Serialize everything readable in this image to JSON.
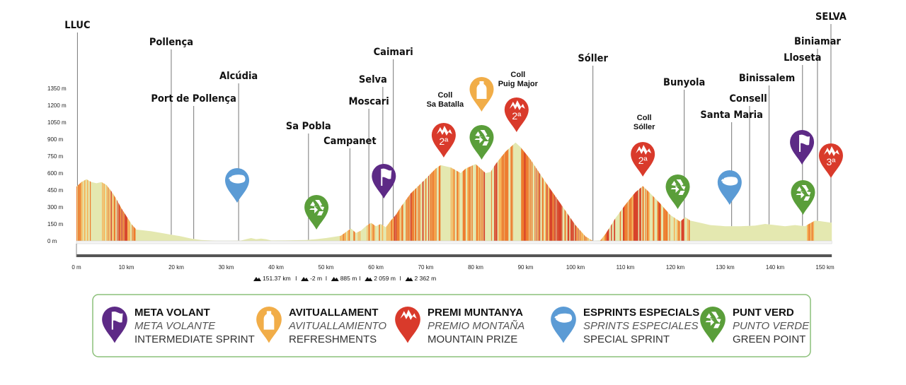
{
  "chart_data": {
    "type": "area",
    "title": "",
    "xlabel": "",
    "ylabel": "",
    "x_unit": "km",
    "y_unit": "m",
    "xlim": [
      0,
      151.37
    ],
    "ylim": [
      0,
      1400
    ],
    "x_ticks": [
      {
        "value": 0,
        "label": "0 m"
      },
      {
        "value": 10,
        "label": "10 km"
      },
      {
        "value": 20,
        "label": "20 km"
      },
      {
        "value": 30,
        "label": "30 km"
      },
      {
        "value": 40,
        "label": "40 km"
      },
      {
        "value": 50,
        "label": "50 km"
      },
      {
        "value": 60,
        "label": "60 km"
      },
      {
        "value": 70,
        "label": "70 km"
      },
      {
        "value": 80,
        "label": "80 km"
      },
      {
        "value": 90,
        "label": "90 km"
      },
      {
        "value": 100,
        "label": "100 km"
      },
      {
        "value": 110,
        "label": "110 km"
      },
      {
        "value": 120,
        "label": "120 km"
      },
      {
        "value": 130,
        "label": "130 km"
      },
      {
        "value": 140,
        "label": "140 km"
      },
      {
        "value": 150,
        "label": "150 km"
      }
    ],
    "y_ticks": [
      {
        "value": 0,
        "label": "0 m"
      },
      {
        "value": 150,
        "label": "150 m"
      },
      {
        "value": 300,
        "label": "300 m"
      },
      {
        "value": 450,
        "label": "450 m"
      },
      {
        "value": 600,
        "label": "600 m"
      },
      {
        "value": 750,
        "label": "750 m"
      },
      {
        "value": 900,
        "label": "900 m"
      },
      {
        "value": 1050,
        "label": "1050 m"
      },
      {
        "value": 1200,
        "label": "1200 m"
      },
      {
        "value": 1350,
        "label": "1350 m"
      }
    ],
    "profile": [
      [
        0,
        480
      ],
      [
        1,
        520
      ],
      [
        2,
        545
      ],
      [
        3,
        520
      ],
      [
        4,
        510
      ],
      [
        5,
        520
      ],
      [
        6,
        495
      ],
      [
        7,
        440
      ],
      [
        8,
        370
      ],
      [
        9,
        290
      ],
      [
        10,
        220
      ],
      [
        11,
        150
      ],
      [
        12,
        100
      ],
      [
        13,
        95
      ],
      [
        15,
        85
      ],
      [
        17,
        70
      ],
      [
        19,
        55
      ],
      [
        21,
        40
      ],
      [
        23,
        20
      ],
      [
        25,
        8
      ],
      [
        28,
        2
      ],
      [
        31,
        2
      ],
      [
        33,
        3
      ],
      [
        34,
        15
      ],
      [
        35,
        25
      ],
      [
        36,
        15
      ],
      [
        37,
        20
      ],
      [
        38,
        15
      ],
      [
        39,
        4
      ],
      [
        42,
        5
      ],
      [
        46,
        8
      ],
      [
        48,
        15
      ],
      [
        50,
        25
      ],
      [
        53,
        45
      ],
      [
        55,
        110
      ],
      [
        56,
        70
      ],
      [
        57,
        90
      ],
      [
        58,
        130
      ],
      [
        59,
        160
      ],
      [
        60,
        130
      ],
      [
        61,
        150
      ],
      [
        62,
        120
      ],
      [
        63,
        180
      ],
      [
        64,
        230
      ],
      [
        65,
        300
      ],
      [
        67,
        420
      ],
      [
        70,
        550
      ],
      [
        72,
        640
      ],
      [
        73,
        670
      ],
      [
        75,
        650
      ],
      [
        77,
        600
      ],
      [
        78,
        640
      ],
      [
        80,
        680
      ],
      [
        82,
        600
      ],
      [
        83,
        610
      ],
      [
        84,
        680
      ],
      [
        86,
        790
      ],
      [
        88,
        870
      ],
      [
        89,
        830
      ],
      [
        91,
        720
      ],
      [
        94,
        520
      ],
      [
        97,
        330
      ],
      [
        100,
        140
      ],
      [
        102,
        40
      ],
      [
        103.5,
        0
      ],
      [
        105,
        5
      ],
      [
        106,
        60
      ],
      [
        107,
        130
      ],
      [
        108,
        200
      ],
      [
        110,
        320
      ],
      [
        112,
        430
      ],
      [
        113.5,
        485
      ],
      [
        115,
        420
      ],
      [
        117,
        330
      ],
      [
        119,
        230
      ],
      [
        121,
        170
      ],
      [
        122,
        210
      ],
      [
        123,
        180
      ],
      [
        125,
        160
      ],
      [
        127,
        140
      ],
      [
        130,
        130
      ],
      [
        133,
        130
      ],
      [
        136,
        135
      ],
      [
        138,
        150
      ],
      [
        140,
        140
      ],
      [
        142,
        130
      ],
      [
        144,
        140
      ],
      [
        146,
        130
      ],
      [
        148,
        180
      ],
      [
        149,
        175
      ],
      [
        151.37,
        160
      ]
    ],
    "towns": [
      {
        "label": "LLUC",
        "km": 0.2
      },
      {
        "label": "Pollença",
        "km": 19
      },
      {
        "label": "Port de Pollença",
        "km": 23.5
      },
      {
        "label": "Alcúdia",
        "km": 32.5
      },
      {
        "label": "Sa Pobla",
        "km": 46.5
      },
      {
        "label": "Campanet",
        "km": 54.8
      },
      {
        "label": "Moscari",
        "km": 58.6
      },
      {
        "label": "Selva",
        "km": 61.4
      },
      {
        "label": "Caimari",
        "km": 63.5
      },
      {
        "label": "Sóller",
        "km": 103.5
      },
      {
        "label": "Bunyola",
        "km": 121.8
      },
      {
        "label": "Santa Maria",
        "km": 131.3
      },
      {
        "label": "Consell",
        "km": 134.9
      },
      {
        "label": "Binissalem",
        "km": 138.8
      },
      {
        "label": "Lloseta",
        "km": 145.5
      },
      {
        "label": "Biniamar",
        "km": 148.5
      },
      {
        "label": "SELVA",
        "km": 151.2
      }
    ],
    "climbs": [
      {
        "name_l1": "Coll",
        "name_l2": "Sa Batalla",
        "km": 73.6,
        "category": "2ª"
      },
      {
        "name_l1": "Coll",
        "name_l2": "Puig Major",
        "km": 88.2,
        "category": "2ª"
      },
      {
        "name_l1": "Coll",
        "name_l2": "Sóller",
        "km": 113.5,
        "category": "2ª"
      }
    ],
    "markers": [
      {
        "type": "special_sprint",
        "km": 32.2
      },
      {
        "type": "green_point",
        "km": 48.1
      },
      {
        "type": "intermediate_sprint",
        "km": 61.6
      },
      {
        "type": "mountain_prize",
        "km": 73.6,
        "category": "2ª"
      },
      {
        "type": "refreshments",
        "km": 81.2
      },
      {
        "type": "green_point",
        "km": 81.2
      },
      {
        "type": "mountain_prize",
        "km": 88.2,
        "category": "2ª"
      },
      {
        "type": "mountain_prize",
        "km": 113.5,
        "category": "2ª"
      },
      {
        "type": "green_point",
        "km": 120.5
      },
      {
        "type": "special_sprint",
        "km": 130.9
      },
      {
        "type": "intermediate_sprint",
        "km": 145.4
      },
      {
        "type": "green_point",
        "km": 145.6
      },
      {
        "type": "mountain_prize",
        "km": 151.2,
        "category": "3ª"
      }
    ],
    "stats": {
      "distance": "151.37 km",
      "lowest": "-2 m",
      "highest": "885 m",
      "elev_gain": "2 059 m",
      "elev_loss": "2 362 m"
    }
  },
  "colors": {
    "profile_fill": "#e4e8b0",
    "steep_1": "#f5b45a",
    "steep_2": "#ee7a2c",
    "steep_3": "#d8432a",
    "intermediate_sprint": "#5d2a86",
    "refreshments": "#f1ad48",
    "mountain_prize": "#d93a2b",
    "special_sprint": "#5b9bd5",
    "green_point": "#5a9e3a",
    "legend_border": "#8cc07a"
  },
  "legend": [
    {
      "key": "intermediate_sprint",
      "icon": "flag-icon",
      "line1": "META VOLANT",
      "line2": "META VOLANTE",
      "line3": "INTERMEDIATE SPRINT"
    },
    {
      "key": "refreshments",
      "icon": "bottle-icon",
      "line1": "AVITUALLAMENT",
      "line2": "AVITUALLAMIENTO",
      "line3": "REFRESHMENTS"
    },
    {
      "key": "mountain_prize",
      "icon": "mountain-icon",
      "line1": "PREMI MUNTANYA",
      "line2": "PREMIO MONTAÑA",
      "line3": "MOUNTAIN PRIZE"
    },
    {
      "key": "special_sprint",
      "icon": "sprint-icon",
      "line1": "ESPRINTS ESPECIALS",
      "line2": "SPRINTS ESPECIALES",
      "line3": "SPECIAL SPRINT"
    },
    {
      "key": "green_point",
      "icon": "recycle-icon",
      "line1": "PUNT VERD",
      "line2": "PUNTO VERDE",
      "line3": "GREEN POINT"
    }
  ]
}
